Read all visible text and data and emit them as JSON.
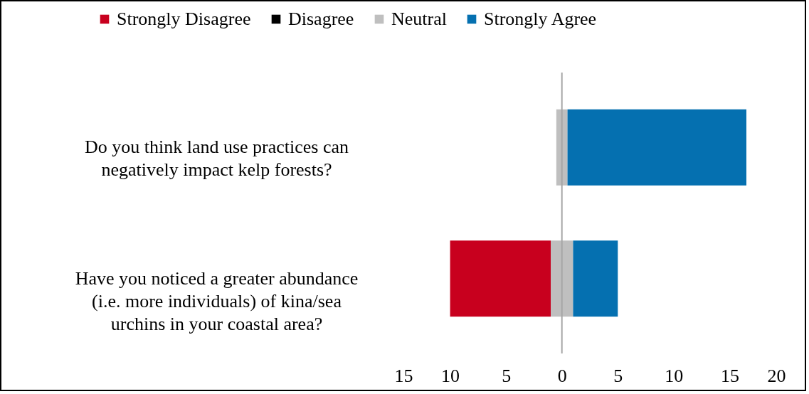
{
  "chart_data": {
    "type": "bar",
    "orientation": "horizontal",
    "categories": [
      "Do you think land use practices can negatively impact kelp forests?",
      "Have you noticed a greater abundance (i.e. more individuals) of kina/sea urchins in your coastal area?"
    ],
    "series": [
      {
        "name": "Strongly Disagree",
        "color": "#c8001e",
        "base": [
          null,
          -10
        ],
        "values": [
          null,
          9
        ]
      },
      {
        "name": "Disagree",
        "color": "#000000",
        "base": [
          null,
          null
        ],
        "values": [
          null,
          null
        ]
      },
      {
        "name": "Neutral",
        "color": "#bfbfbf",
        "base": [
          -0.5,
          -1
        ],
        "values": [
          1,
          2
        ]
      },
      {
        "name": "Strongly Agree",
        "color": "#0570b0",
        "base": [
          0.5,
          1
        ],
        "values": [
          16,
          4
        ]
      }
    ],
    "xlim": [
      -15,
      20
    ],
    "xticks": [
      {
        "value": -15,
        "label": "15"
      },
      {
        "value": -10,
        "label": "10"
      },
      {
        "value": -5,
        "label": "5"
      },
      0,
      5,
      10,
      15,
      20
    ],
    "ref_lines": [
      {
        "axis": "x",
        "value": 0,
        "color": "#a6a6a6"
      }
    ],
    "grid": false,
    "legend": "top"
  }
}
